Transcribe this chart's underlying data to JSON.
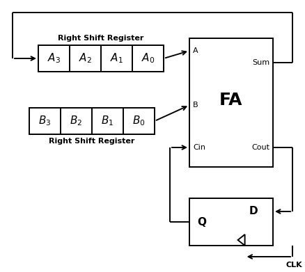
{
  "background_color": "#ffffff",
  "figsize": [
    4.39,
    3.91
  ],
  "dpi": 100,
  "reg_A_label": "Right Shift Register",
  "reg_B_label": "Right Shift Register",
  "reg_A_cells": [
    "A3",
    "A2",
    "A1",
    "A0"
  ],
  "reg_A_subs": [
    "3",
    "2",
    "1",
    "0"
  ],
  "reg_B_cells": [
    "B3",
    "B2",
    "B1",
    "B0"
  ],
  "reg_B_subs": [
    "3",
    "2",
    "1",
    "0"
  ],
  "fa_label": "FA",
  "ff_label_Q": "Q",
  "ff_label_D": "D",
  "clk_label": "CLK",
  "line_color": "#000000",
  "text_color": "#000000",
  "box_edge_color": "#000000",
  "box_face_color": "#ffffff",
  "lw": 1.4
}
